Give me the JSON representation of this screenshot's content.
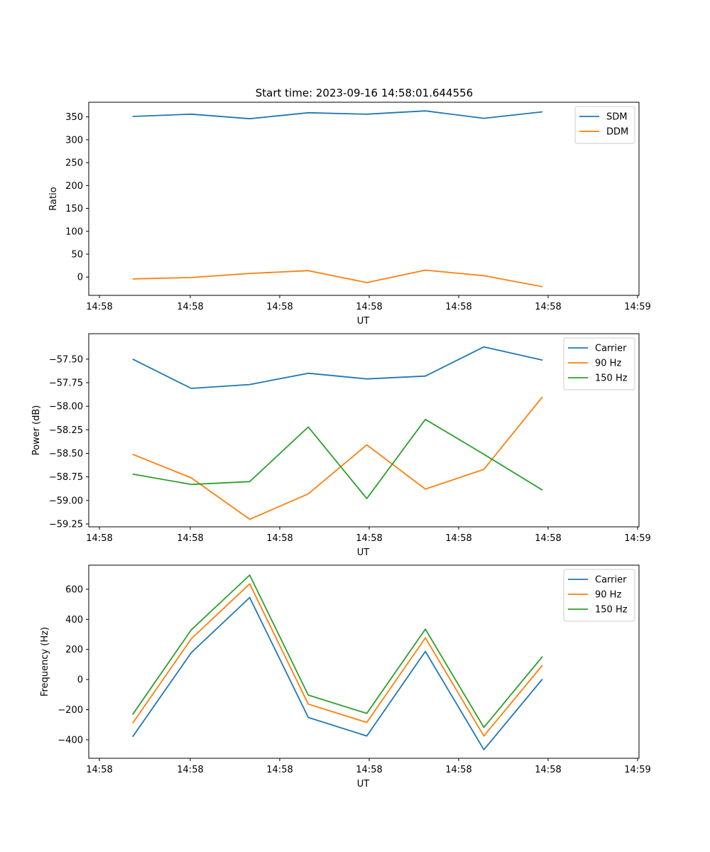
{
  "figure": {
    "title": "Start time: 2023-09-16 14:58:01.644556"
  },
  "chart_data": [
    {
      "type": "line",
      "xlabel": "UT",
      "ylabel": "Ratio",
      "x_tick_labels": [
        "14:58",
        "14:58",
        "14:58",
        "14:58",
        "14:58",
        "14:58",
        "14:59"
      ],
      "x_index": [
        0,
        1,
        2,
        3,
        4,
        5,
        6,
        7
      ],
      "xlim": [
        -0.75,
        8.65
      ],
      "ylim": [
        -40,
        382
      ],
      "yticks": [
        0,
        50,
        100,
        150,
        200,
        250,
        300,
        350
      ],
      "legend_position": "upper-right",
      "series": [
        {
          "name": "SDM",
          "color": "#1f77b4",
          "values": [
            351,
            356,
            346,
            359,
            356,
            363,
            347,
            361
          ]
        },
        {
          "name": "DDM",
          "color": "#ff7f0e",
          "values": [
            -4,
            -1,
            8,
            14,
            -12,
            15,
            3,
            -21
          ]
        }
      ]
    },
    {
      "type": "line",
      "xlabel": "UT",
      "ylabel": "Power (dB)",
      "x_tick_labels": [
        "14:58",
        "14:58",
        "14:58",
        "14:58",
        "14:58",
        "14:58",
        "14:59"
      ],
      "x_index": [
        0,
        1,
        2,
        3,
        4,
        5,
        6,
        7
      ],
      "xlim": [
        -0.75,
        8.65
      ],
      "ylim": [
        -59.28,
        -57.23
      ],
      "yticks": [
        -59.25,
        -59.0,
        -58.75,
        -58.5,
        -58.25,
        -58.0,
        -57.75,
        -57.5
      ],
      "ytick_labels": [
        "−59.25",
        "−59.00",
        "−58.75",
        "−58.50",
        "−58.25",
        "−58.00",
        "−57.75",
        "−57.50"
      ],
      "legend_position": "upper-right",
      "series": [
        {
          "name": "Carrier",
          "color": "#1f77b4",
          "values": [
            -57.5,
            -57.81,
            -57.77,
            -57.65,
            -57.71,
            -57.68,
            -57.37,
            -57.51
          ]
        },
        {
          "name": "90 Hz",
          "color": "#ff7f0e",
          "values": [
            -58.51,
            -58.76,
            -59.2,
            -58.93,
            -58.41,
            -58.88,
            -58.67,
            -57.9
          ]
        },
        {
          "name": "150 Hz",
          "color": "#2ca02c",
          "values": [
            -58.72,
            -58.83,
            -58.8,
            -58.22,
            -58.98,
            -58.14,
            -58.51,
            -58.89
          ]
        }
      ]
    },
    {
      "type": "line",
      "xlabel": "UT",
      "ylabel": "Frequency (Hz)",
      "x_tick_labels": [
        "14:58",
        "14:58",
        "14:58",
        "14:58",
        "14:58",
        "14:58",
        "14:59"
      ],
      "x_index": [
        0,
        1,
        2,
        3,
        4,
        5,
        6,
        7
      ],
      "xlim": [
        -0.75,
        8.65
      ],
      "ylim": [
        -523,
        760
      ],
      "yticks": [
        -400,
        -200,
        0,
        200,
        400,
        600
      ],
      "ytick_labels": [
        "−400",
        "−200",
        "0",
        "200",
        "400",
        "600"
      ],
      "legend_position": "upper-right",
      "series": [
        {
          "name": "Carrier",
          "color": "#1f77b4",
          "values": [
            -380,
            178,
            545,
            -252,
            -375,
            187,
            -466,
            3
          ]
        },
        {
          "name": "90 Hz",
          "color": "#ff7f0e",
          "values": [
            -290,
            270,
            636,
            -163,
            -285,
            277,
            -375,
            95
          ]
        },
        {
          "name": "150 Hz",
          "color": "#2ca02c",
          "values": [
            -232,
            330,
            694,
            -103,
            -225,
            335,
            -318,
            153
          ]
        }
      ]
    }
  ]
}
